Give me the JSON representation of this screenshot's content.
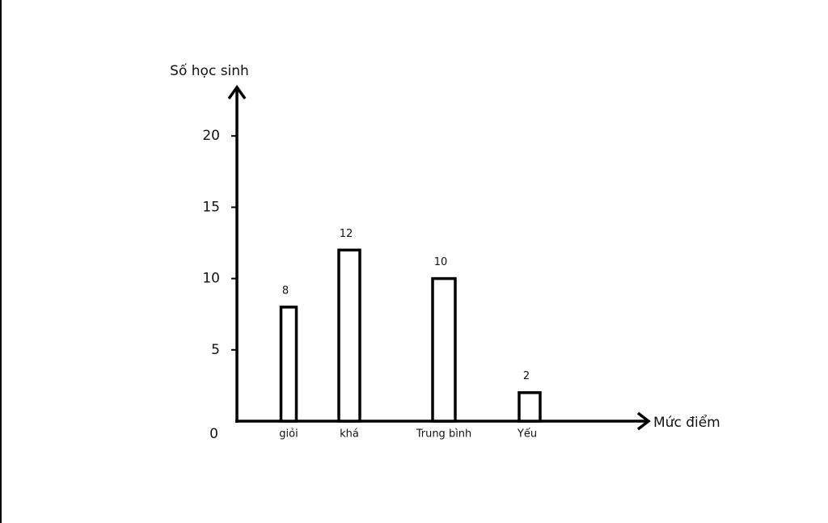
{
  "chart_data": {
    "type": "bar",
    "y_label": "Số học sinh",
    "x_label": "Mức điểm",
    "categories": [
      "giỏi",
      "khá",
      "Trung bình",
      "Yếu"
    ],
    "values": [
      8,
      12,
      10,
      2
    ],
    "color": "#ffffff",
    "ylim": [
      0,
      23.3
    ],
    "yticks": [
      0,
      5,
      10,
      15,
      20
    ],
    "grid": false
  }
}
